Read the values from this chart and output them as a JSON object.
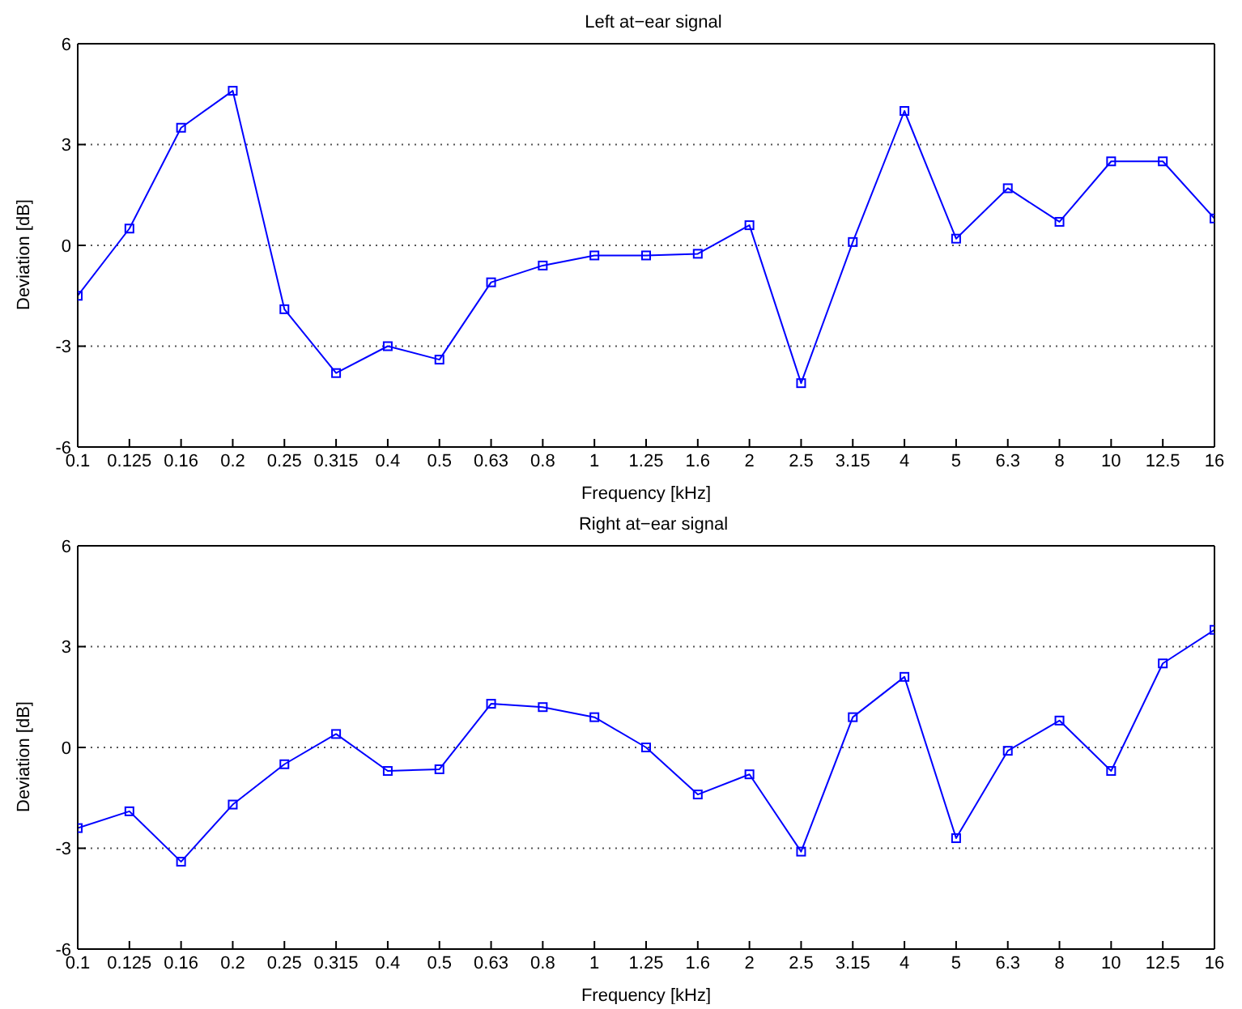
{
  "chart_data": [
    {
      "type": "line",
      "title": "Left at−ear signal",
      "xlabel": "Frequency [kHz]",
      "ylabel": "Deviation [dB]",
      "categories": [
        "0.1",
        "0.125",
        "0.16",
        "0.2",
        "0.25",
        "0.315",
        "0.4",
        "0.5",
        "0.63",
        "0.8",
        "1",
        "1.25",
        "1.6",
        "2",
        "2.5",
        "3.15",
        "4",
        "5",
        "6.3",
        "8",
        "10",
        "12.5",
        "16"
      ],
      "values": [
        -1.5,
        0.5,
        3.5,
        4.6,
        -1.9,
        -3.8,
        -3.0,
        -3.4,
        -1.1,
        -0.6,
        -0.3,
        -0.3,
        -0.25,
        0.6,
        -4.1,
        0.1,
        4.0,
        0.2,
        1.7,
        0.7,
        2.5,
        2.5,
        0.8
      ],
      "color": "#0000ff",
      "marker": "square",
      "ylim": [
        -6,
        6
      ],
      "yticks": [
        -6,
        -3,
        0,
        3,
        6
      ],
      "grid": "y"
    },
    {
      "type": "line",
      "title": "Right at−ear signal",
      "xlabel": "Frequency [kHz]",
      "ylabel": "Deviation [dB]",
      "categories": [
        "0.1",
        "0.125",
        "0.16",
        "0.2",
        "0.25",
        "0.315",
        "0.4",
        "0.5",
        "0.63",
        "0.8",
        "1",
        "1.25",
        "1.6",
        "2",
        "2.5",
        "3.15",
        "4",
        "5",
        "6.3",
        "8",
        "10",
        "12.5",
        "16"
      ],
      "values": [
        -2.4,
        -1.9,
        -3.4,
        -1.7,
        -0.5,
        0.4,
        -0.7,
        -0.65,
        1.3,
        1.2,
        0.9,
        0,
        -1.4,
        -0.8,
        -3.1,
        0.9,
        2.1,
        -2.7,
        -0.1,
        0.8,
        -0.7,
        2.5,
        3.5
      ],
      "color": "#0000ff",
      "marker": "square",
      "ylim": [
        -6,
        6
      ],
      "yticks": [
        -6,
        -3,
        0,
        3,
        6
      ],
      "grid": "y"
    }
  ]
}
